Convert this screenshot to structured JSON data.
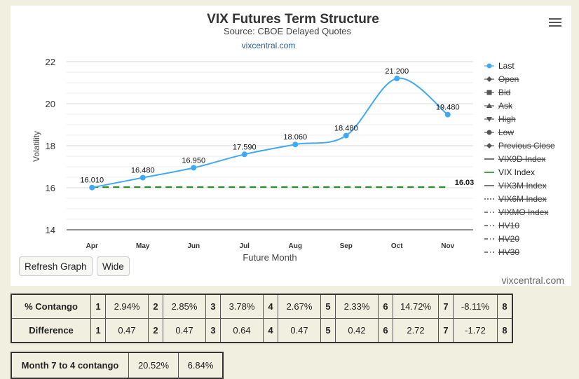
{
  "chart_data": {
    "type": "line",
    "title": "VIX Futures Term Structure",
    "subtitle": "Source: CBOE Delayed Quotes",
    "link": "vixcentral.com",
    "xlabel": "Future Month",
    "ylabel": "Volatility",
    "categories": [
      "Apr",
      "May",
      "Jun",
      "Jul",
      "Aug",
      "Sep",
      "Oct",
      "Nov"
    ],
    "ylim": [
      14,
      22
    ],
    "yticks": [
      "14",
      "16",
      "18",
      "20",
      "22"
    ],
    "grid": true,
    "legend_position": "right",
    "series": [
      {
        "name": "Last",
        "values": [
          16.01,
          16.48,
          16.95,
          17.59,
          18.06,
          18.48,
          21.2,
          19.48
        ],
        "labels": [
          "16.010",
          "16.480",
          "16.950",
          "17.590",
          "18.060",
          "18.480",
          "21.200",
          "19.480"
        ],
        "color": "#3fa9f5"
      },
      {
        "name": "VIX Index",
        "value": 16.03,
        "label": "16.03",
        "color": "#1a8a1a"
      }
    ],
    "legend": [
      {
        "name": "Last",
        "active": true,
        "marker": "circle"
      },
      {
        "name": "Open",
        "active": false,
        "marker": "diamond"
      },
      {
        "name": "Bid",
        "active": false,
        "marker": "square"
      },
      {
        "name": "Ask",
        "active": false,
        "marker": "triangle"
      },
      {
        "name": "High",
        "active": false,
        "marker": "triangle-down"
      },
      {
        "name": "Low",
        "active": false,
        "marker": "circle"
      },
      {
        "name": "Previous Close",
        "active": false,
        "marker": "diamond"
      },
      {
        "name": "VIX9D Index",
        "active": false,
        "marker": "line"
      },
      {
        "name": "VIX Index",
        "active": true,
        "marker": "line"
      },
      {
        "name": "VIX3M Index",
        "active": false,
        "marker": "line"
      },
      {
        "name": "VIX6M Index",
        "active": false,
        "marker": "dotted"
      },
      {
        "name": "VIXMO Index",
        "active": false,
        "marker": "dashdot"
      },
      {
        "name": "HV10",
        "active": false,
        "marker": "dashdot"
      },
      {
        "name": "HV20",
        "active": false,
        "marker": "dashdot"
      },
      {
        "name": "HV30",
        "active": false,
        "marker": "dashdot"
      }
    ]
  },
  "buttons": {
    "refresh": "Refresh Graph",
    "wide": "Wide"
  },
  "credit": "vixcentral.com",
  "contango_table": {
    "rows": [
      {
        "label": "% Contango",
        "cells": [
          "1",
          "2.94%",
          "2",
          "2.85%",
          "3",
          "3.78%",
          "4",
          "2.67%",
          "5",
          "2.33%",
          "6",
          "14.72%",
          "7",
          "-8.11%",
          "8"
        ]
      },
      {
        "label": "Difference",
        "cells": [
          "1",
          "0.47",
          "2",
          "0.47",
          "3",
          "0.64",
          "4",
          "0.47",
          "5",
          "0.42",
          "6",
          "2.72",
          "7",
          "-1.72",
          "8"
        ]
      }
    ]
  },
  "month_table": {
    "label": "Month 7 to 4 contango",
    "values": [
      "20.52%",
      "6.84%"
    ]
  }
}
